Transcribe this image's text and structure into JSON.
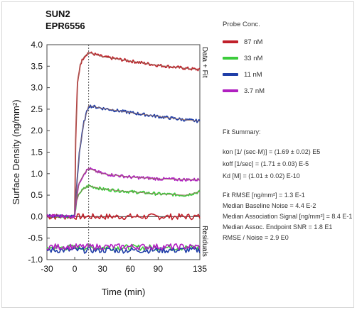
{
  "titles": {
    "line1": "SUN2",
    "line2": "EPR6556"
  },
  "axes": {
    "ylabel": "Surface Density (ng/mm²)",
    "xlabel": "Time (min)",
    "right_top": "Data + Fit",
    "right_bottom": "Residuals"
  },
  "legend": {
    "title": "Probe Conc.",
    "items": [
      {
        "label": "87 nM",
        "color": "#c0202a"
      },
      {
        "label": "33 nM",
        "color": "#3ccc3c"
      },
      {
        "label": "11 nM",
        "color": "#1f3ea8"
      },
      {
        "label": "3.7 nM",
        "color": "#b020c0"
      }
    ]
  },
  "fit_summary": {
    "title": "Fit Summary:",
    "params": [
      "kon  [1/ (sec·M)]  =  (1.69 ± 0.02) E5",
      "koff  [1/sec]  =  (1.71 ± 0.03) E-5",
      "Kd  [M]  =  (1.01 ± 0.02) E-10"
    ],
    "stats": [
      "Fit RMSE [ng/mm²]  =  1.3 E-1",
      "Median Baseline Noise  =  4.4 E-2",
      "Median Association Signal [ng/mm²] = 8.4 E-1",
      "Median Assoc. Endpoint SNR  =  1.8 E1",
      "RMSE / Noise  =  2.9 E0"
    ]
  },
  "chart_data": {
    "type": "line",
    "xlim": [
      -30,
      135
    ],
    "ylim": [
      -1.0,
      4.0
    ],
    "xticks": [
      "-30",
      "0",
      "30",
      "60",
      "90",
      "135"
    ],
    "xtick_values": [
      -30,
      0,
      30,
      60,
      90,
      135
    ],
    "yticks": [
      "-1.0",
      "-0.5",
      "0.0",
      "0.5",
      "1.0",
      "1.5",
      "2.0",
      "2.5",
      "3.0",
      "3.5",
      "4.0"
    ],
    "ytick_values": [
      -1.0,
      -0.5,
      0.0,
      0.5,
      1.0,
      1.5,
      2.0,
      2.5,
      3.0,
      3.5,
      4.0
    ],
    "dissociation_start": 15,
    "fit_color": "#9a7060",
    "series": [
      {
        "name": "87 nM",
        "color": "#c0202a",
        "x": [
          -30,
          -10,
          -1,
          0,
          1,
          3,
          6,
          10,
          15,
          30,
          60,
          90,
          120,
          135
        ],
        "y": [
          0.02,
          0.01,
          0.0,
          0.05,
          1.8,
          3.1,
          3.55,
          3.72,
          3.82,
          3.72,
          3.62,
          3.52,
          3.45,
          3.42
        ],
        "residual": 0.0
      },
      {
        "name": "33 nM",
        "color": "#3ccc3c",
        "x": [
          -30,
          -10,
          -1,
          0,
          2,
          5,
          10,
          15,
          30,
          60,
          90,
          120,
          135
        ],
        "y": [
          0.02,
          0.01,
          0.0,
          0.05,
          0.35,
          0.55,
          0.65,
          0.72,
          0.64,
          0.58,
          0.53,
          0.5,
          0.58
        ],
        "residual": -0.72
      },
      {
        "name": "11 nM",
        "color": "#1f3ea8",
        "x": [
          -30,
          -10,
          -1,
          0,
          2,
          5,
          10,
          15,
          30,
          60,
          90,
          120,
          135
        ],
        "y": [
          0.02,
          0.01,
          0.0,
          0.05,
          0.7,
          1.5,
          2.2,
          2.58,
          2.52,
          2.42,
          2.33,
          2.25,
          2.22
        ],
        "residual": -0.78
      },
      {
        "name": "3.7 nM",
        "color": "#b020c0",
        "x": [
          -30,
          -10,
          -1,
          0,
          2,
          5,
          10,
          15,
          30,
          60,
          90,
          120,
          135
        ],
        "y": [
          0.02,
          0.01,
          0.0,
          0.05,
          0.45,
          0.8,
          1.0,
          1.12,
          1.0,
          0.92,
          0.88,
          0.86,
          0.86
        ],
        "residual": -0.7
      }
    ]
  }
}
